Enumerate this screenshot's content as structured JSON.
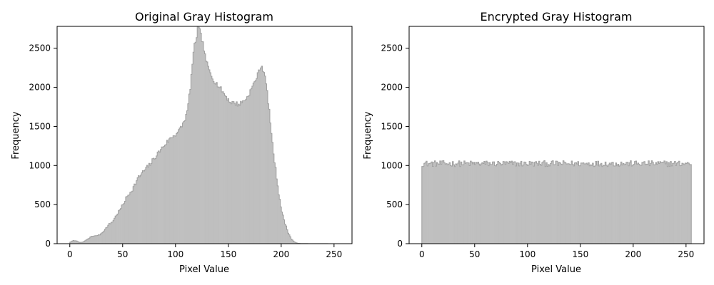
{
  "chart_data": [
    {
      "type": "histogram",
      "title": "Original Gray Histogram",
      "xlabel": "Pixel Value",
      "ylabel": "Frequency",
      "xlim": [
        -12,
        267
      ],
      "ylim": [
        0,
        2780
      ],
      "xticks": [
        0,
        50,
        100,
        150,
        200,
        250
      ],
      "yticks": [
        0,
        500,
        1000,
        1500,
        2000,
        2500
      ],
      "grid": false,
      "bins": 256,
      "fill_color": "#bfbfbf",
      "edge_color": "#a0a0a0",
      "anchors": [
        [
          0,
          20
        ],
        [
          3,
          40
        ],
        [
          6,
          35
        ],
        [
          9,
          15
        ],
        [
          12,
          20
        ],
        [
          15,
          45
        ],
        [
          18,
          70
        ],
        [
          20,
          95
        ],
        [
          24,
          100
        ],
        [
          28,
          115
        ],
        [
          31,
          150
        ],
        [
          34,
          200
        ],
        [
          37,
          250
        ],
        [
          40,
          280
        ],
        [
          44,
          370
        ],
        [
          47,
          430
        ],
        [
          50,
          500
        ],
        [
          53,
          580
        ],
        [
          56,
          640
        ],
        [
          60,
          720
        ],
        [
          64,
          830
        ],
        [
          68,
          900
        ],
        [
          72,
          960
        ],
        [
          76,
          1020
        ],
        [
          80,
          1100
        ],
        [
          84,
          1170
        ],
        [
          88,
          1240
        ],
        [
          92,
          1300
        ],
        [
          96,
          1360
        ],
        [
          100,
          1400
        ],
        [
          104,
          1460
        ],
        [
          108,
          1560
        ],
        [
          111,
          1680
        ],
        [
          114,
          2000
        ],
        [
          116,
          2300
        ],
        [
          118,
          2540
        ],
        [
          120,
          2650
        ],
        [
          121,
          2780
        ],
        [
          123,
          2720
        ],
        [
          126,
          2560
        ],
        [
          128,
          2400
        ],
        [
          131,
          2250
        ],
        [
          134,
          2150
        ],
        [
          137,
          2080
        ],
        [
          140,
          2030
        ],
        [
          144,
          1960
        ],
        [
          148,
          1880
        ],
        [
          152,
          1810
        ],
        [
          156,
          1800
        ],
        [
          160,
          1780
        ],
        [
          164,
          1820
        ],
        [
          168,
          1870
        ],
        [
          172,
          1980
        ],
        [
          175,
          2070
        ],
        [
          178,
          2160
        ],
        [
          180,
          2250
        ],
        [
          182,
          2270
        ],
        [
          184,
          2190
        ],
        [
          186,
          2050
        ],
        [
          188,
          1820
        ],
        [
          190,
          1560
        ],
        [
          192,
          1270
        ],
        [
          195,
          950
        ],
        [
          198,
          650
        ],
        [
          201,
          400
        ],
        [
          204,
          260
        ],
        [
          207,
          140
        ],
        [
          210,
          60
        ],
        [
          213,
          20
        ],
        [
          216,
          5
        ],
        [
          220,
          2
        ],
        [
          255,
          0
        ]
      ]
    },
    {
      "type": "histogram",
      "title": "Encrypted Gray Histogram",
      "xlabel": "Pixel Value",
      "ylabel": "Frequency",
      "xlim": [
        -12,
        267
      ],
      "ylim": [
        0,
        2780
      ],
      "xticks": [
        0,
        50,
        100,
        150,
        200,
        250
      ],
      "yticks": [
        0,
        500,
        1000,
        1500,
        2000,
        2500
      ],
      "grid": false,
      "bins": 256,
      "fill_color": "#bfbfbf",
      "edge_color": "#a0a0a0",
      "base": 1024,
      "jitter": 38
    }
  ]
}
